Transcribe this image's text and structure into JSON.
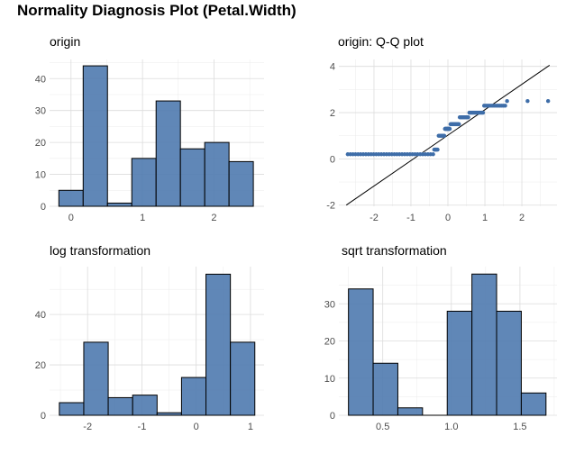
{
  "title": "Normality Diagnosis Plot (Petal.Width)",
  "colors": {
    "bar_fill": "#4F7AAF",
    "bar_stroke": "#000000",
    "grid": "#DCDCDC",
    "point": "#3E6DA8",
    "line": "#000000"
  },
  "chart_data": [
    {
      "type": "bar",
      "title": "origin",
      "bars": [
        {
          "x0": -0.17,
          "x1": 0.17,
          "count": 5
        },
        {
          "x0": 0.17,
          "x1": 0.51,
          "count": 44
        },
        {
          "x0": 0.51,
          "x1": 0.85,
          "count": 1
        },
        {
          "x0": 0.85,
          "x1": 1.19,
          "count": 15
        },
        {
          "x0": 1.19,
          "x1": 1.53,
          "count": 33
        },
        {
          "x0": 1.53,
          "x1": 1.87,
          "count": 18
        },
        {
          "x0": 1.87,
          "x1": 2.21,
          "count": 20
        },
        {
          "x0": 2.21,
          "x1": 2.55,
          "count": 14
        }
      ],
      "xlim": [
        -0.3,
        2.7
      ],
      "ylim": [
        0,
        46
      ],
      "xticks": [
        0,
        1,
        2
      ],
      "xtick_labels": [
        "0",
        "1",
        "2"
      ],
      "yticks": [
        0,
        10,
        20,
        30,
        40
      ],
      "ytick_labels": [
        "0",
        "10",
        "20",
        "30",
        "40"
      ],
      "grid": true
    },
    {
      "type": "scatter",
      "title": "origin: Q-Q plot",
      "xlim": [
        -2.95,
        2.95
      ],
      "ylim": [
        -2.05,
        4.3
      ],
      "xticks": [
        -2,
        -1,
        0,
        1,
        2
      ],
      "xtick_labels": [
        "-2",
        "-1",
        "0",
        "1",
        "2"
      ],
      "yticks": [
        -2,
        0,
        2,
        4
      ],
      "ytick_labels": [
        "-2",
        "0",
        "2",
        "4"
      ],
      "grid": true,
      "groups": [
        {
          "from": -2.71,
          "to": -0.4,
          "value": 0.2,
          "n": 34
        },
        {
          "from": -0.37,
          "to": -0.28,
          "value": 0.4,
          "n": 7
        },
        {
          "from": -0.25,
          "to": -0.1,
          "value": 1.0,
          "n": 7
        },
        {
          "from": -0.08,
          "to": 0.05,
          "value": 1.3,
          "n": 13
        },
        {
          "from": 0.07,
          "to": 0.3,
          "value": 1.5,
          "n": 12
        },
        {
          "from": 0.32,
          "to": 0.55,
          "value": 1.8,
          "n": 12
        },
        {
          "from": 0.58,
          "to": 0.95,
          "value": 2.0,
          "n": 14
        },
        {
          "from": 0.98,
          "to": 1.55,
          "value": 2.3,
          "n": 13
        },
        {
          "from": 1.6,
          "to": 2.71,
          "value": 2.5,
          "n": 3
        }
      ],
      "ref_line": {
        "x": [
          -2.75,
          2.75
        ],
        "y": [
          -2.0,
          4.05
        ]
      }
    },
    {
      "type": "bar",
      "title": "log transformation",
      "bars": [
        {
          "x0": -2.52,
          "x1": -2.07,
          "count": 5
        },
        {
          "x0": -2.07,
          "x1": -1.62,
          "count": 29
        },
        {
          "x0": -1.62,
          "x1": -1.17,
          "count": 7
        },
        {
          "x0": -1.17,
          "x1": -0.72,
          "count": 8
        },
        {
          "x0": -0.72,
          "x1": -0.27,
          "count": 1
        },
        {
          "x0": -0.27,
          "x1": 0.18,
          "count": 15
        },
        {
          "x0": 0.18,
          "x1": 0.63,
          "count": 56
        },
        {
          "x0": 0.63,
          "x1": 1.08,
          "count": 29
        }
      ],
      "xlim": [
        -2.7,
        1.25
      ],
      "ylim": [
        0,
        59
      ],
      "xticks": [
        -2,
        -1,
        0,
        1
      ],
      "xtick_labels": [
        "-2",
        "-1",
        "0",
        "1"
      ],
      "yticks": [
        0,
        20,
        40
      ],
      "ytick_labels": [
        "0",
        "20",
        "40"
      ],
      "grid": true
    },
    {
      "type": "bar",
      "title": "sqrt transformation",
      "bars": [
        {
          "x0": 0.25,
          "x1": 0.43,
          "count": 34
        },
        {
          "x0": 0.43,
          "x1": 0.61,
          "count": 14
        },
        {
          "x0": 0.61,
          "x1": 0.79,
          "count": 2
        },
        {
          "x0": 0.79,
          "x1": 0.97,
          "count": 0
        },
        {
          "x0": 0.97,
          "x1": 1.15,
          "count": 28
        },
        {
          "x0": 1.15,
          "x1": 1.33,
          "count": 38
        },
        {
          "x0": 1.33,
          "x1": 1.51,
          "count": 28
        },
        {
          "x0": 1.51,
          "x1": 1.69,
          "count": 6
        }
      ],
      "xlim": [
        0.18,
        1.77
      ],
      "ylim": [
        0,
        40
      ],
      "xticks": [
        0.5,
        1.0,
        1.5
      ],
      "xtick_labels": [
        "0.5",
        "1.0",
        "1.5"
      ],
      "yticks": [
        0,
        10,
        20,
        30
      ],
      "ytick_labels": [
        "0",
        "10",
        "20",
        "30"
      ],
      "grid": true
    }
  ]
}
